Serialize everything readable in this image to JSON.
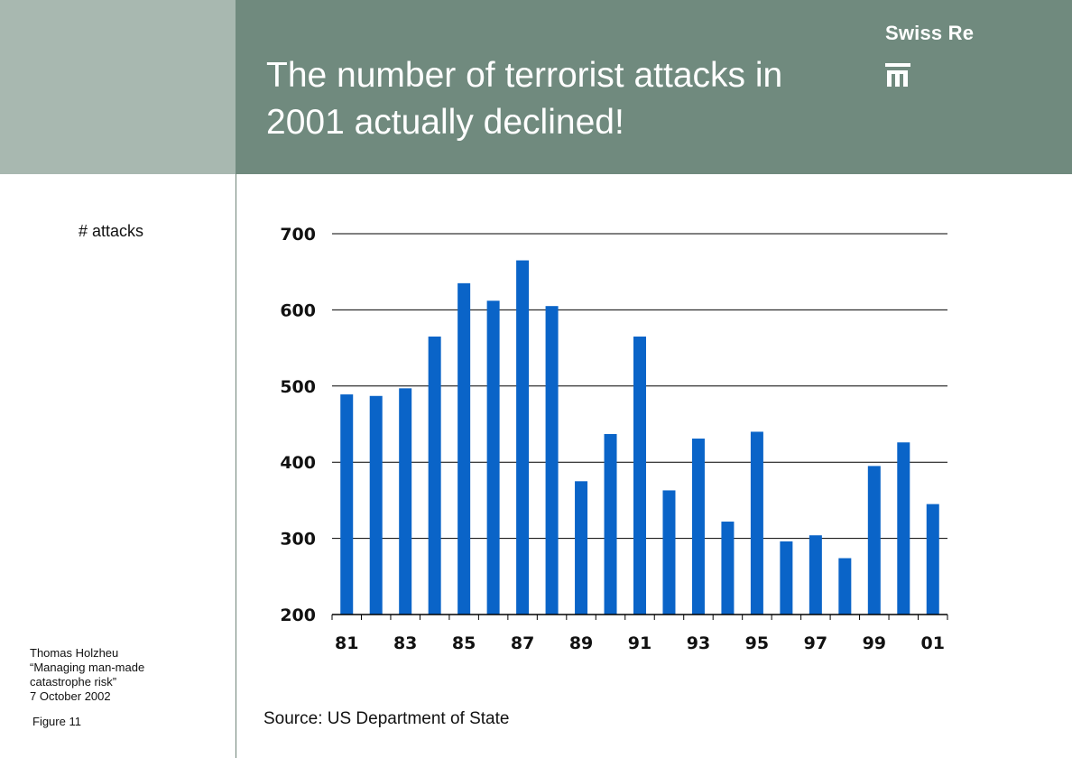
{
  "slide": {
    "title_line1": "The number of terrorist attacks in",
    "title_line2": "2001 actually declined!",
    "brand": "Swiss Re",
    "ylabel_left": "# attacks",
    "footer": {
      "author": "Thomas Holzheu",
      "talk_line1": "“Managing man-made",
      "talk_line2": "catastrophe risk”",
      "date": "7 October 2002"
    },
    "figure_label": "Figure 11",
    "source": "Source: US Department of State"
  },
  "colors": {
    "header_bg": "#708a7e",
    "left_strip_bg": "#a8b8b0",
    "bar": "#0a64c8",
    "gridline": "#000000"
  },
  "chart_data": {
    "type": "bar",
    "title": "",
    "xlabel": "",
    "ylabel": "# attacks",
    "ylim": [
      200,
      700
    ],
    "yticks": [
      200,
      300,
      400,
      500,
      600,
      700
    ],
    "categories": [
      "81",
      "82",
      "83",
      "84",
      "85",
      "86",
      "87",
      "88",
      "89",
      "90",
      "91",
      "92",
      "93",
      "94",
      "95",
      "96",
      "97",
      "98",
      "99",
      "00",
      "01"
    ],
    "xtick_labels": [
      "81",
      "83",
      "85",
      "87",
      "89",
      "91",
      "93",
      "95",
      "97",
      "99",
      "01"
    ],
    "values": [
      489,
      487,
      497,
      565,
      635,
      612,
      665,
      605,
      375,
      437,
      565,
      363,
      431,
      322,
      440,
      296,
      304,
      274,
      395,
      426,
      345
    ],
    "grid": true,
    "legend": "none"
  }
}
